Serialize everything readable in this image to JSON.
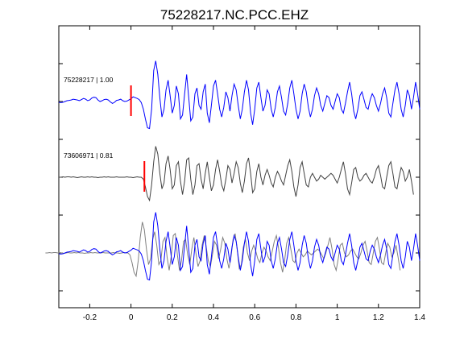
{
  "chart_data": {
    "type": "line",
    "title": "75228217.NC.PCC.EHZ",
    "xlabel": "",
    "ylabel": "",
    "xlim": [
      -0.35,
      1.4
    ],
    "x_ticks": [
      "-0.2",
      "0",
      "0.2",
      "0.4",
      "0.6",
      "0.8",
      "1",
      "1.2",
      "1.4"
    ],
    "x_tick_values": [
      -0.2,
      0,
      0.2,
      0.4,
      0.6,
      0.8,
      1.0,
      1.2,
      1.4
    ],
    "grid": false,
    "legend": "none",
    "traces": [
      {
        "label": "75228217 | 1.00",
        "color": "#0000ff",
        "pick_time": 0.0,
        "pick_color": "#ff0000",
        "offset": 2,
        "sample_dt": 0.01,
        "samples": [
          -0.02,
          -0.03,
          -0.02,
          0.0,
          0.02,
          0.03,
          0.04,
          0.06,
          0.05,
          0.04,
          0.02,
          0.05,
          0.08,
          0.06,
          0.02,
          0.04,
          0.09,
          0.11,
          0.1,
          0.04,
          0.0,
          0.02,
          0.05,
          0.06,
          0.04,
          -0.01,
          -0.05,
          -0.02,
          0.03,
          0.04,
          0.06,
          0.02,
          0.0,
          0.01,
          0.04,
          0.07,
          0.12,
          0.1,
          0.08,
          0.05,
          -0.03,
          -0.2,
          -0.45,
          -0.68,
          -0.7,
          -0.2,
          0.8,
          1.05,
          0.7,
          0.1,
          -0.4,
          -0.2,
          0.3,
          0.55,
          0.15,
          -0.3,
          -0.1,
          0.4,
          0.2,
          -0.45,
          -0.35,
          0.2,
          0.7,
          0.1,
          -0.5,
          -0.4,
          0.2,
          0.35,
          -0.1,
          -0.2,
          0.25,
          0.45,
          -0.3,
          -0.55,
          -0.1,
          0.4,
          0.55,
          0.2,
          -0.2,
          -0.4,
          -0.15,
          0.25,
          0.1,
          -0.25,
          0.15,
          0.45,
          0.3,
          -0.1,
          -0.45,
          -0.2,
          0.25,
          0.55,
          0.3,
          -0.3,
          -0.6,
          -0.2,
          0.35,
          0.5,
          0.1,
          -0.25,
          -0.1,
          0.3,
          0.2,
          -0.2,
          -0.4,
          -0.15,
          0.25,
          0.4,
          0.1,
          -0.25,
          -0.35,
          -0.05,
          0.35,
          0.55,
          0.2,
          -0.2,
          -0.45,
          -0.25,
          0.2,
          0.45,
          0.25,
          -0.15,
          -0.4,
          -0.2,
          0.15,
          0.35,
          0.2,
          -0.1,
          -0.25,
          -0.05,
          0.15,
          0.1,
          -0.1,
          -0.2,
          0.0,
          0.2,
          0.1,
          -0.2,
          -0.3,
          -0.05,
          0.25,
          0.5,
          0.2,
          -0.25,
          -0.45,
          -0.2,
          0.15,
          0.25,
          0.05,
          -0.15,
          -0.2,
          0.05,
          0.2,
          0.1,
          -0.1,
          -0.25,
          -0.05,
          0.2,
          0.35,
          0.1,
          -0.3,
          -0.4,
          -0.05,
          0.3,
          0.5,
          0.2,
          -0.2,
          -0.4,
          -0.1,
          0.3,
          0.15,
          -0.2,
          0.1,
          0.5,
          0.2,
          -0.2
        ]
      },
      {
        "label": "73606971 | 0.81",
        "color": "#404040",
        "pick_time": 0.065,
        "pick_color": "#ff0000",
        "offset": 1,
        "sample_dt": 0.01,
        "samples": [
          0.0,
          0.0,
          0.01,
          0.0,
          0.01,
          0.01,
          0.0,
          0.01,
          0.0,
          -0.01,
          0.0,
          0.01,
          0.0,
          0.0,
          0.01,
          0.0,
          0.01,
          0.0,
          0.0,
          -0.01,
          0.0,
          0.0,
          0.01,
          0.0,
          0.01,
          0.0,
          0.0,
          0.0,
          0.01,
          0.0,
          0.0,
          0.0,
          0.0,
          0.01,
          0.0,
          0.0,
          -0.01,
          0.0,
          0.01,
          0.0,
          0.0,
          -0.05,
          -0.25,
          -0.5,
          -0.6,
          -0.2,
          0.4,
          0.8,
          0.6,
          0.1,
          -0.3,
          -0.15,
          0.35,
          0.55,
          0.2,
          -0.3,
          -0.2,
          0.3,
          0.4,
          -0.1,
          -0.45,
          -0.1,
          0.45,
          0.5,
          -0.05,
          -0.45,
          -0.2,
          0.3,
          0.35,
          -0.05,
          -0.3,
          0.1,
          0.4,
          0.0,
          -0.35,
          -0.2,
          0.2,
          0.45,
          0.15,
          -0.2,
          -0.35,
          -0.05,
          0.3,
          0.2,
          -0.15,
          0.1,
          0.4,
          0.25,
          -0.15,
          -0.4,
          -0.1,
          0.35,
          0.5,
          0.1,
          -0.4,
          -0.3,
          0.15,
          0.35,
          0.0,
          -0.2,
          0.05,
          0.2,
          0.05,
          -0.15,
          -0.25,
          0.0,
          0.15,
          0.05,
          -0.1,
          -0.2,
          0.05,
          0.3,
          0.45,
          0.15,
          -0.25,
          -0.5,
          -0.2,
          0.25,
          0.4,
          0.1,
          -0.2,
          -0.25,
          0.0,
          0.1,
          0.0,
          -0.1,
          -0.05,
          0.05,
          0.0,
          -0.05,
          0.0,
          0.05,
          0.1,
          0.05,
          -0.05,
          -0.15,
          0.0,
          0.2,
          0.4,
          0.1,
          -0.3,
          -0.45,
          -0.15,
          0.2,
          0.25,
          0.0,
          -0.1,
          -0.05,
          0.05,
          0.1,
          0.0,
          -0.1,
          -0.15,
          0.0,
          0.2,
          0.3,
          0.05,
          -0.25,
          -0.3,
          0.0,
          0.3,
          0.4,
          0.1,
          -0.25,
          -0.3,
          0.0,
          0.25,
          0.15,
          -0.1,
          0.0,
          0.2,
          -0.1,
          -0.45
        ]
      }
    ]
  }
}
